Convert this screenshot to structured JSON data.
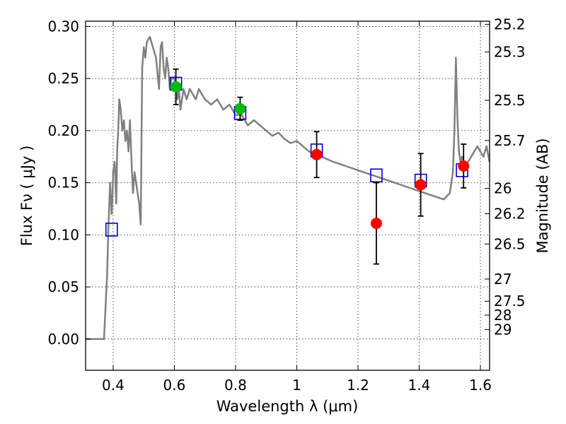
{
  "chart_data": {
    "type": "scatter",
    "title": "",
    "xlabel": "Wavelength  λ (μm)",
    "ylabel": "Flux  Fν  ( μJy )",
    "y2label": "Magnitude (AB)",
    "xlim": [
      0.31,
      1.63
    ],
    "ylim": [
      -0.03,
      0.305
    ],
    "grid": true,
    "x_ticks": [
      0.4,
      0.6,
      0.8,
      1.0,
      1.2,
      1.4,
      1.6
    ],
    "x_tick_labels": [
      "0.4",
      "0.6",
      "0.8",
      "1",
      "1.2",
      "1.4",
      "1.6"
    ],
    "y_ticks": [
      0.0,
      0.05,
      0.1,
      0.15,
      0.2,
      0.25,
      0.3
    ],
    "y_tick_labels": [
      "0.00",
      "0.05",
      "0.10",
      "0.15",
      "0.20",
      "0.25",
      "0.30"
    ],
    "mag_ticks": [
      "25.2",
      "25.3",
      "25.5",
      "25.7",
      "26",
      "26.2",
      "26.5",
      "27",
      "27.5",
      "28",
      "29"
    ],
    "colors": {
      "model": "#808080",
      "model_points": "#0000cc",
      "detections_green": "#00bb00",
      "detections_red": "#ff0000",
      "errorbars": "#000000"
    },
    "series": [
      {
        "name": "SED model",
        "kind": "line",
        "x": [
          0.31,
          0.37,
          0.38,
          0.385,
          0.39,
          0.395,
          0.398,
          0.4,
          0.405,
          0.41,
          0.413,
          0.418,
          0.42,
          0.425,
          0.43,
          0.435,
          0.44,
          0.445,
          0.45,
          0.455,
          0.46,
          0.465,
          0.47,
          0.475,
          0.48,
          0.485,
          0.49,
          0.495,
          0.5,
          0.505,
          0.51,
          0.52,
          0.53,
          0.54,
          0.55,
          0.555,
          0.56,
          0.565,
          0.57,
          0.575,
          0.58,
          0.585,
          0.59,
          0.6,
          0.61,
          0.615,
          0.62,
          0.63,
          0.64,
          0.65,
          0.66,
          0.67,
          0.68,
          0.69,
          0.7,
          0.72,
          0.74,
          0.76,
          0.78,
          0.8,
          0.82,
          0.84,
          0.86,
          0.88,
          0.9,
          0.92,
          0.94,
          0.96,
          0.98,
          1.0,
          1.04,
          1.08,
          1.12,
          1.16,
          1.2,
          1.24,
          1.28,
          1.32,
          1.36,
          1.4,
          1.44,
          1.48,
          1.5,
          1.51,
          1.515,
          1.52,
          1.525,
          1.53,
          1.535,
          1.54,
          1.55,
          1.56,
          1.57,
          1.58,
          1.59,
          1.6,
          1.61,
          1.62,
          1.63
        ],
        "y": [
          0.0,
          0.0,
          0.06,
          0.11,
          0.15,
          0.12,
          0.14,
          0.16,
          0.17,
          0.13,
          0.18,
          0.21,
          0.23,
          0.22,
          0.2,
          0.21,
          0.19,
          0.2,
          0.18,
          0.21,
          0.17,
          0.14,
          0.16,
          0.15,
          0.14,
          0.13,
          0.11,
          0.26,
          0.28,
          0.27,
          0.285,
          0.29,
          0.28,
          0.27,
          0.24,
          0.28,
          0.285,
          0.26,
          0.25,
          0.27,
          0.26,
          0.24,
          0.25,
          0.25,
          0.23,
          0.24,
          0.22,
          0.24,
          0.23,
          0.24,
          0.235,
          0.23,
          0.24,
          0.235,
          0.23,
          0.225,
          0.23,
          0.22,
          0.225,
          0.215,
          0.215,
          0.205,
          0.21,
          0.205,
          0.2,
          0.195,
          0.198,
          0.192,
          0.188,
          0.19,
          0.18,
          0.175,
          0.17,
          0.166,
          0.162,
          0.158,
          0.154,
          0.15,
          0.146,
          0.142,
          0.138,
          0.134,
          0.14,
          0.16,
          0.2,
          0.27,
          0.21,
          0.18,
          0.17,
          0.175,
          0.165,
          0.17,
          0.175,
          0.18,
          0.185,
          0.18,
          0.175,
          0.185,
          0.17
        ]
      },
      {
        "name": "model photometry",
        "kind": "open-square",
        "x": [
          0.395,
          0.605,
          0.815,
          1.065,
          1.26,
          1.405,
          1.54
        ],
        "y": [
          0.105,
          0.245,
          0.217,
          0.181,
          0.157,
          0.152,
          0.162
        ]
      },
      {
        "name": "detections (green)",
        "kind": "filled-circle",
        "x": [
          0.605,
          0.815
        ],
        "y": [
          0.242,
          0.221
        ],
        "yerr": [
          0.017,
          0.011
        ]
      },
      {
        "name": "detections (red)",
        "kind": "filled-circle",
        "x": [
          1.065,
          1.26,
          1.405,
          1.545
        ],
        "y": [
          0.177,
          0.111,
          0.148,
          0.166
        ],
        "yerr": [
          0.022,
          0.039,
          0.03,
          0.021
        ]
      }
    ]
  }
}
